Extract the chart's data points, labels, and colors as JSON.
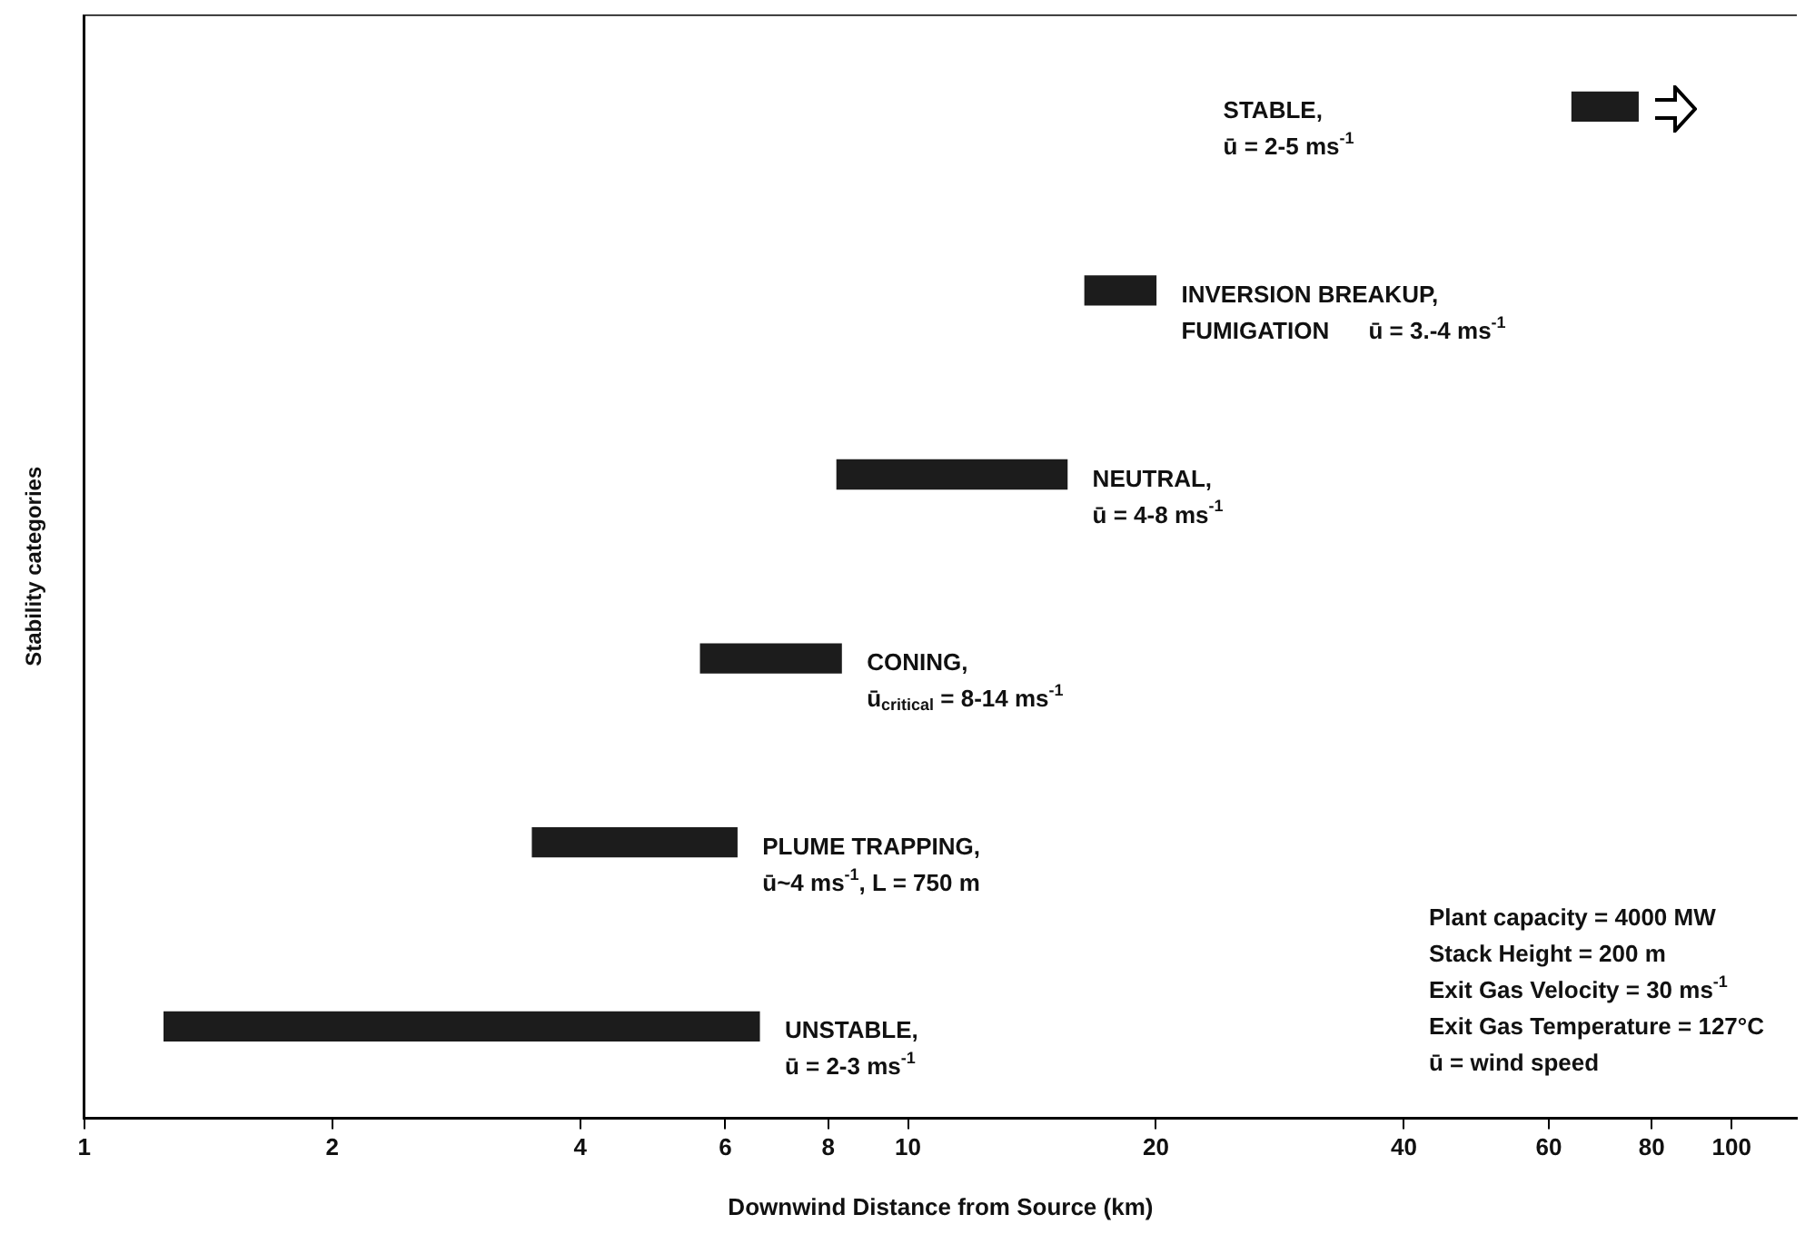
{
  "chart_data": {
    "type": "bar",
    "orientation": "horizontal",
    "xlabel": "Downwind Distance from Source (km)",
    "ylabel": "Stability categories",
    "categories": [
      null,
      null,
      null,
      null,
      null,
      null
    ],
    "base": [
      64,
      16.4,
      8.2,
      5.6,
      3.5,
      1.25
    ],
    "values": [
      13,
      3.6,
      7.4,
      2.7,
      2.7,
      5.35
    ],
    "color": "#1c1c1c",
    "log": "x",
    "xlim": [
      1,
      120
    ],
    "xticks": [
      1,
      2,
      4,
      6,
      8,
      10,
      20,
      40,
      60,
      80,
      100
    ],
    "grid": false,
    "legend": false,
    "tick_labels": "x",
    "annotations": [
      "STABLE,\nū = 2-5 ms$^{-1}$",
      "INVERSION BREAKUP,\nFUMIGATION      ū = 3.-4 ms$^{-1}$",
      "NEUTRAL,\nū = 4-8 ms$^{-1}$",
      "CONING,\nū$_{critical}$ = 8-14 ms$^{-1}$",
      "PLUME TRAPPING,\nū~4 ms$^{-1}$, L = 750 m",
      "UNSTABLE,\nū = 2-3 ms$^{-1}$",
      "Plant capacity = 4000 MW\nStack Height = 200 m\nExit Gas Velocity = 30 ms$^{-1}$\nExit Gas Temperature = 127°C\nū = wind speed"
    ]
  }
}
